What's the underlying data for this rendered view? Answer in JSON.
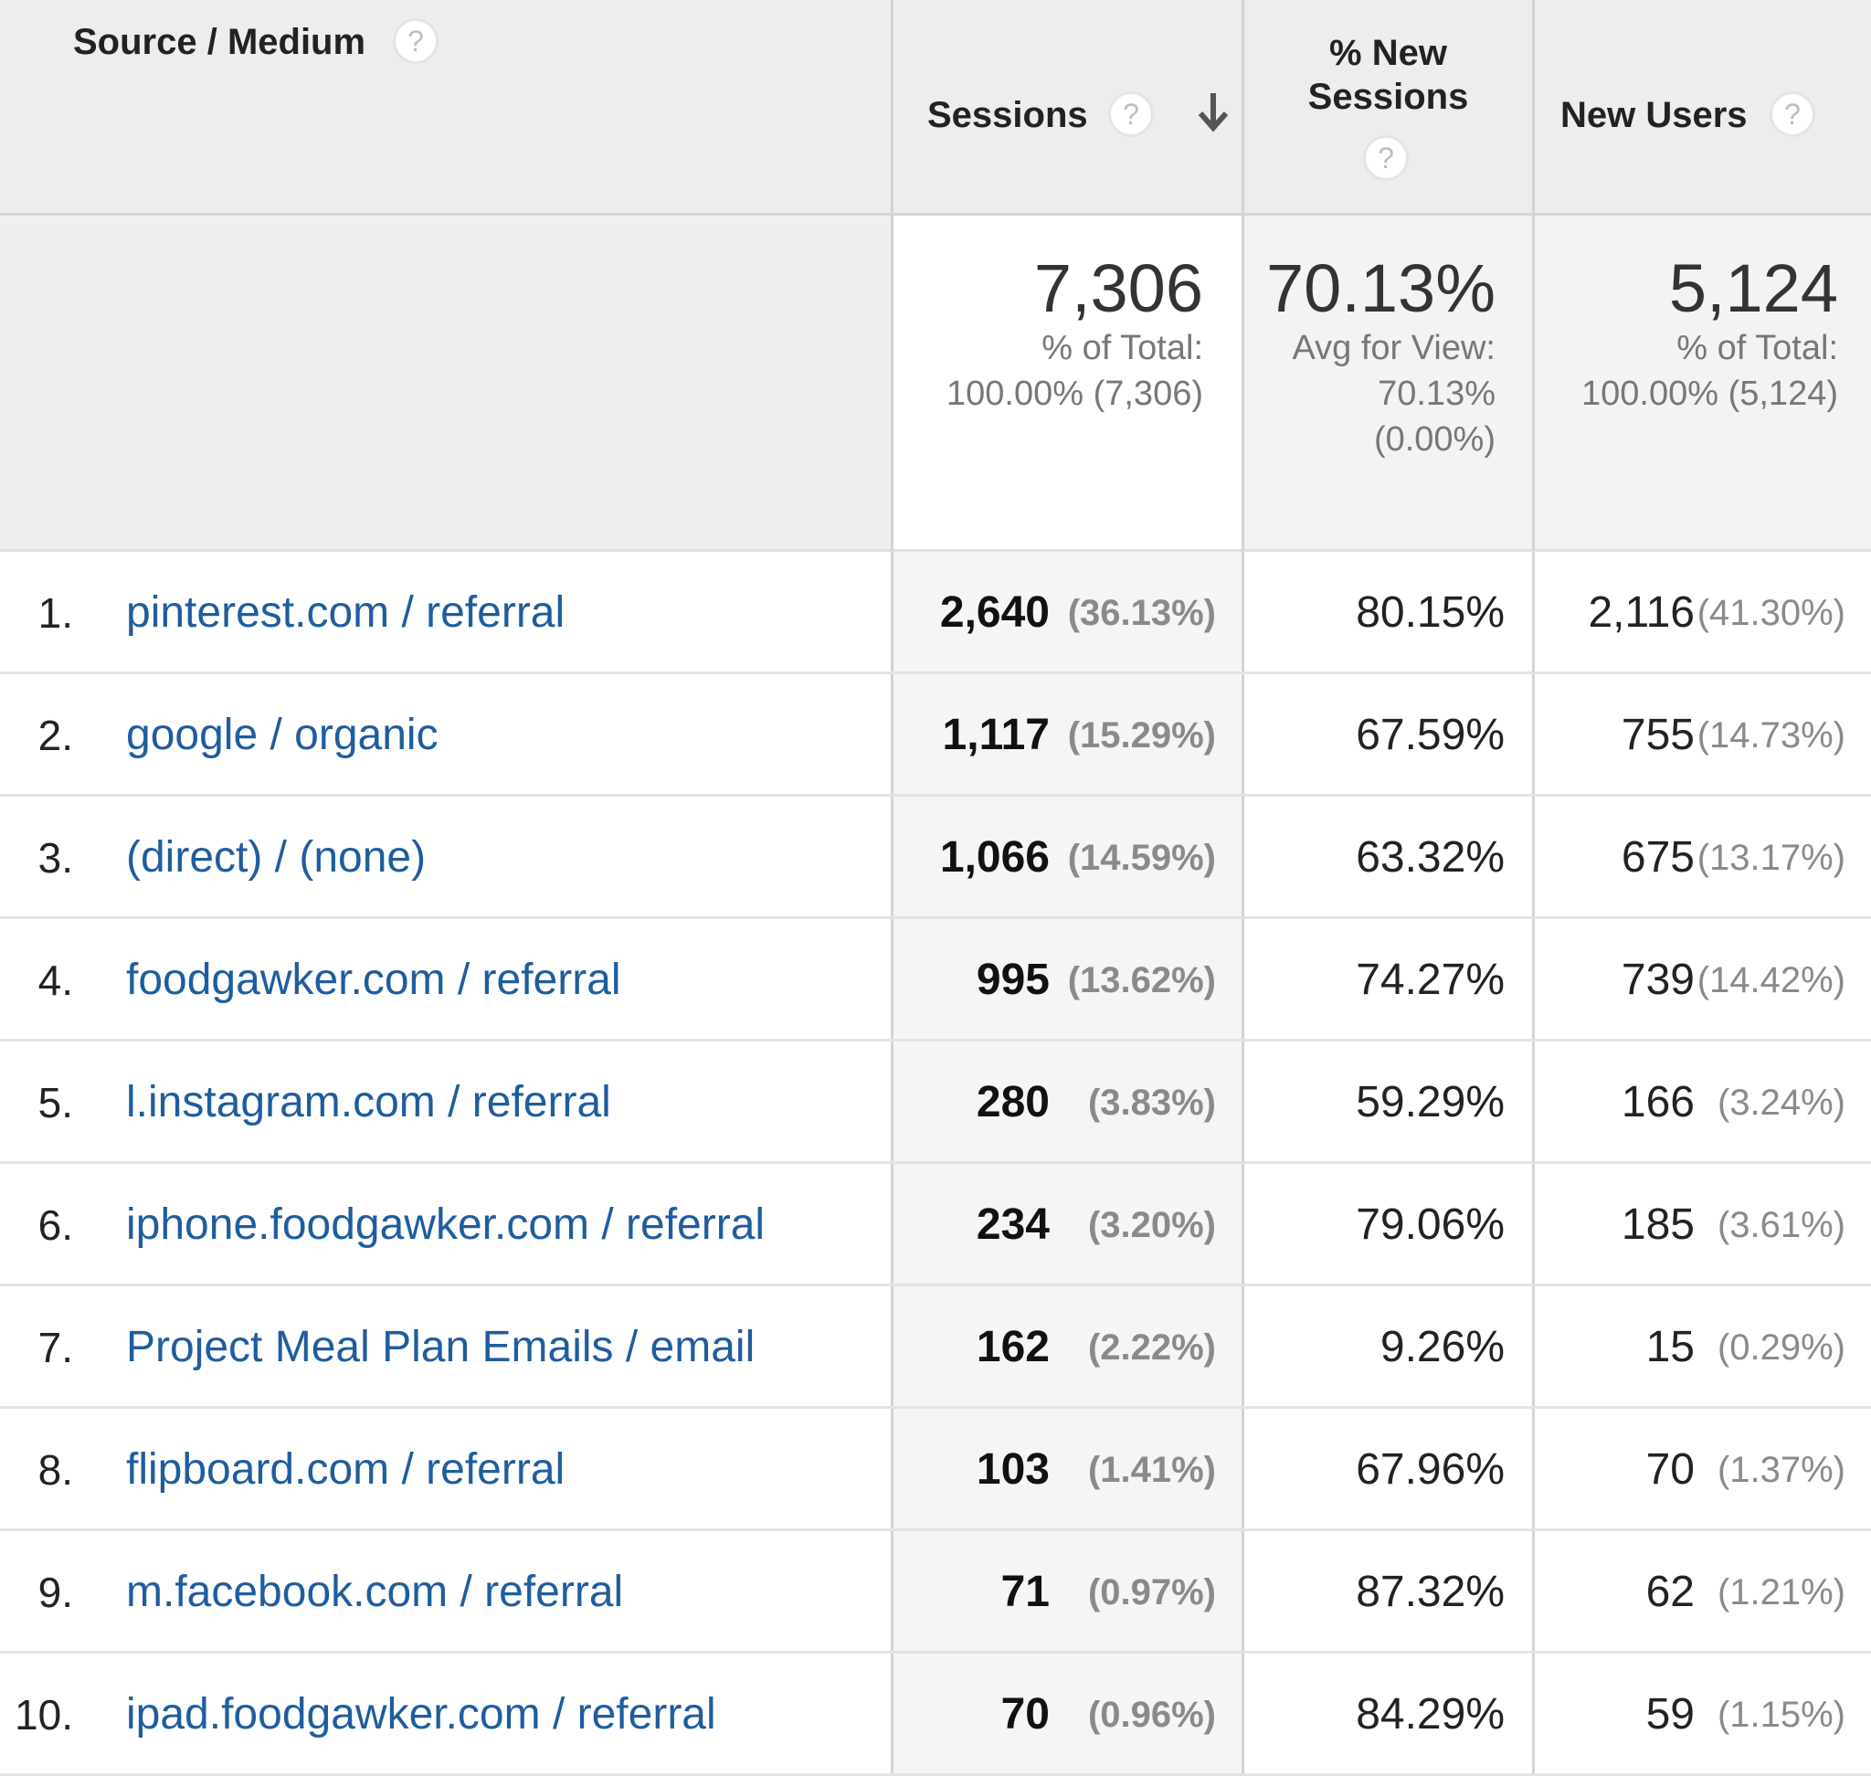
{
  "header": {
    "source_medium": "Source / Medium",
    "sessions": "Sessions",
    "new_sessions_line1": "% New",
    "new_sessions_line2": "Sessions",
    "new_users": "New Users",
    "help_glyph": "?"
  },
  "totals": {
    "sessions": {
      "value": "7,306",
      "line1": "% of Total:",
      "line2": "100.00% (7,306)"
    },
    "new_sessions": {
      "value": "70.13%",
      "line1": "Avg for View:",
      "line2": "70.13%",
      "line3": "(0.00%)"
    },
    "new_users": {
      "value": "5,124",
      "line1": "% of Total:",
      "line2": "100.00% (5,124)"
    }
  },
  "rows": [
    {
      "rank": "1.",
      "source": "pinterest.com / referral",
      "sessions": "2,640",
      "sessions_pct": "(36.13%)",
      "new_sessions": "80.15%",
      "new_users": "2,116",
      "new_users_pct": "(41.30%)"
    },
    {
      "rank": "2.",
      "source": "google / organic",
      "sessions": "1,117",
      "sessions_pct": "(15.29%)",
      "new_sessions": "67.59%",
      "new_users": "755",
      "new_users_pct": "(14.73%)"
    },
    {
      "rank": "3.",
      "source": "(direct) / (none)",
      "sessions": "1,066",
      "sessions_pct": "(14.59%)",
      "new_sessions": "63.32%",
      "new_users": "675",
      "new_users_pct": "(13.17%)"
    },
    {
      "rank": "4.",
      "source": "foodgawker.com / referral",
      "sessions": "995",
      "sessions_pct": "(13.62%)",
      "new_sessions": "74.27%",
      "new_users": "739",
      "new_users_pct": "(14.42%)"
    },
    {
      "rank": "5.",
      "source": "l.instagram.com / referral",
      "sessions": "280",
      "sessions_pct": "(3.83%)",
      "new_sessions": "59.29%",
      "new_users": "166",
      "new_users_pct": "(3.24%)"
    },
    {
      "rank": "6.",
      "source": "iphone.foodgawker.com / referral",
      "sessions": "234",
      "sessions_pct": "(3.20%)",
      "new_sessions": "79.06%",
      "new_users": "185",
      "new_users_pct": "(3.61%)"
    },
    {
      "rank": "7.",
      "source": "Project Meal Plan Emails / email",
      "sessions": "162",
      "sessions_pct": "(2.22%)",
      "new_sessions": "9.26%",
      "new_users": "15",
      "new_users_pct": "(0.29%)"
    },
    {
      "rank": "8.",
      "source": "flipboard.com / referral",
      "sessions": "103",
      "sessions_pct": "(1.41%)",
      "new_sessions": "67.96%",
      "new_users": "70",
      "new_users_pct": "(1.37%)"
    },
    {
      "rank": "9.",
      "source": "m.facebook.com / referral",
      "sessions": "71",
      "sessions_pct": "(0.97%)",
      "new_sessions": "87.32%",
      "new_users": "62",
      "new_users_pct": "(1.21%)"
    },
    {
      "rank": "10.",
      "source": "ipad.foodgawker.com / referral",
      "sessions": "70",
      "sessions_pct": "(0.96%)",
      "new_sessions": "84.29%",
      "new_users": "59",
      "new_users_pct": "(1.15%)"
    }
  ],
  "colors": {
    "link": "#1e5d9e",
    "header_bg": "#ededed",
    "border": "#d3d3d3"
  },
  "icons": {
    "help": "help-circle-icon",
    "sort": "arrow-down-icon"
  }
}
